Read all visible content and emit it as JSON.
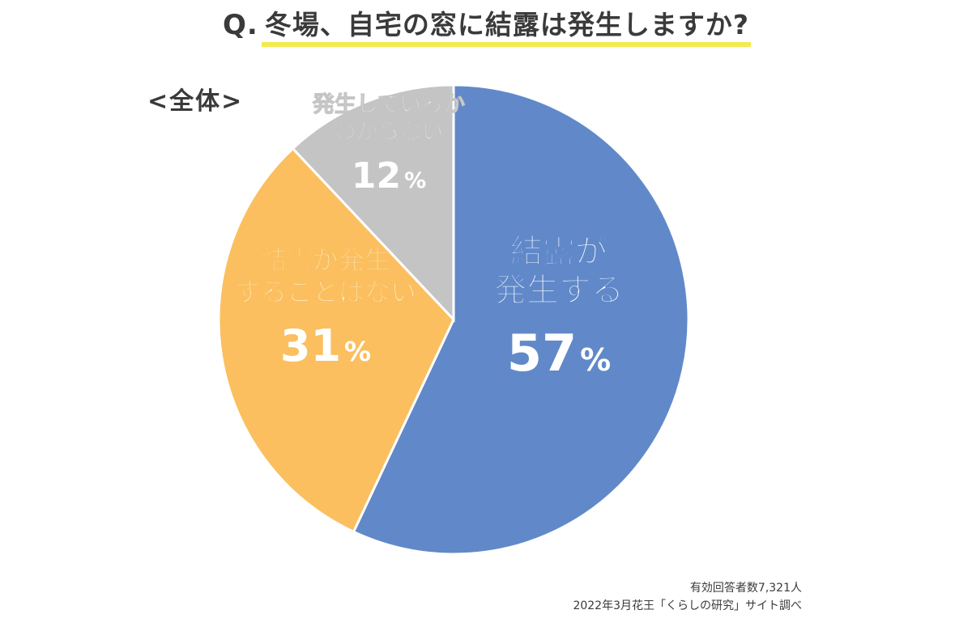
{
  "title": {
    "prefix": "Q.",
    "text": "冬場、自宅の窓に結露は発生しますか?"
  },
  "subtitle": "<全体>",
  "chart_data": {
    "type": "pie",
    "title": "冬場、自宅の窓に結露は発生しますか?",
    "subtitle": "<全体>",
    "start_angle_deg": 0,
    "direction": "clockwise",
    "slices": [
      {
        "label_lines": [
          "結露が",
          "発生する"
        ],
        "value": 57,
        "value_label": "57",
        "color": "#6189c9",
        "text_color": "#ffffff"
      },
      {
        "label_lines": [
          "結露が発生",
          "することはない"
        ],
        "value": 31,
        "value_label": "31",
        "color": "#fbbf5f",
        "text_color": "#ffffff"
      },
      {
        "label_lines": [
          "発生しているか",
          "わからない"
        ],
        "value": 12,
        "value_label": "12",
        "color": "#c4c4c4",
        "text_color": "#ffffff"
      }
    ],
    "unit": "%",
    "legend": "none"
  },
  "footnotes": {
    "respondents": "有効回答者数7,321人",
    "source": "2022年3月花王「くらしの研究」サイト調べ"
  },
  "colors": {
    "title_underline": "#f3ea4e",
    "text": "#3a3a3a",
    "slice_border": "#ffffff"
  }
}
